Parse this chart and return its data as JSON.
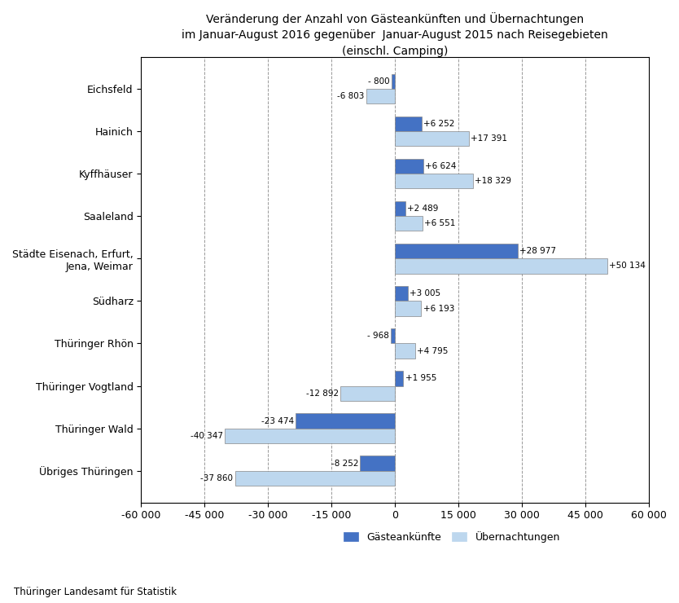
{
  "title": "Veränderung der Anzahl von Gästeankünften und Übernachtungen\nim Januar-August 2016 gegenüber  Januar-August 2015 nach Reisegebieten\n(einschl. Camping)",
  "categories": [
    "Eichsfeld",
    "Hainich",
    "Kyffhäuser",
    "Saaleland",
    "Städte Eisenach, Erfurt,\nJena, Weimar",
    "Südharz",
    "Thüringer Rhön",
    "Thüringer Vogtland",
    "Thüringer Wald",
    "Übriges Thüringen"
  ],
  "gaesteankunfte": [
    -800,
    6252,
    6624,
    2489,
    28977,
    3005,
    -968,
    1955,
    -23474,
    -8252
  ],
  "uebernachtungen": [
    -6803,
    17391,
    18329,
    6551,
    50134,
    6193,
    4795,
    -12892,
    -40347,
    -37860
  ],
  "gaeste_labels": [
    "- 800",
    "+6 252",
    "+6 624",
    "+2 489",
    "+28 977",
    "+3 005",
    "- 968",
    "+1 955",
    "-23 474",
    "-8 252"
  ],
  "ueber_labels": [
    "-6 803",
    "+17 391",
    "+18 329",
    "+6 551",
    "+50 134",
    "+6 193",
    "+4 795",
    "-12 892",
    "-40 347",
    "-37 860"
  ],
  "color_gaeste": "#4472C4",
  "color_ueber": "#BDD7EE",
  "xlim": [
    -60000,
    60000
  ],
  "xticks": [
    -60000,
    -45000,
    -30000,
    -15000,
    0,
    15000,
    30000,
    45000,
    60000
  ],
  "xtick_labels": [
    "-60 000",
    "-45 000",
    "-30 000",
    "-15 000",
    "0",
    "15 000",
    "30 000",
    "45 000",
    "60 000"
  ],
  "footer_left": "Thüringer Landesamt für Statistik",
  "legend_gaeste": "Gästeankünfte",
  "legend_ueber": "Übernachtungen",
  "bar_height": 0.35,
  "title_fontsize": 10,
  "axis_fontsize": 9,
  "label_fontsize": 7.5,
  "footer_fontsize": 8.5
}
